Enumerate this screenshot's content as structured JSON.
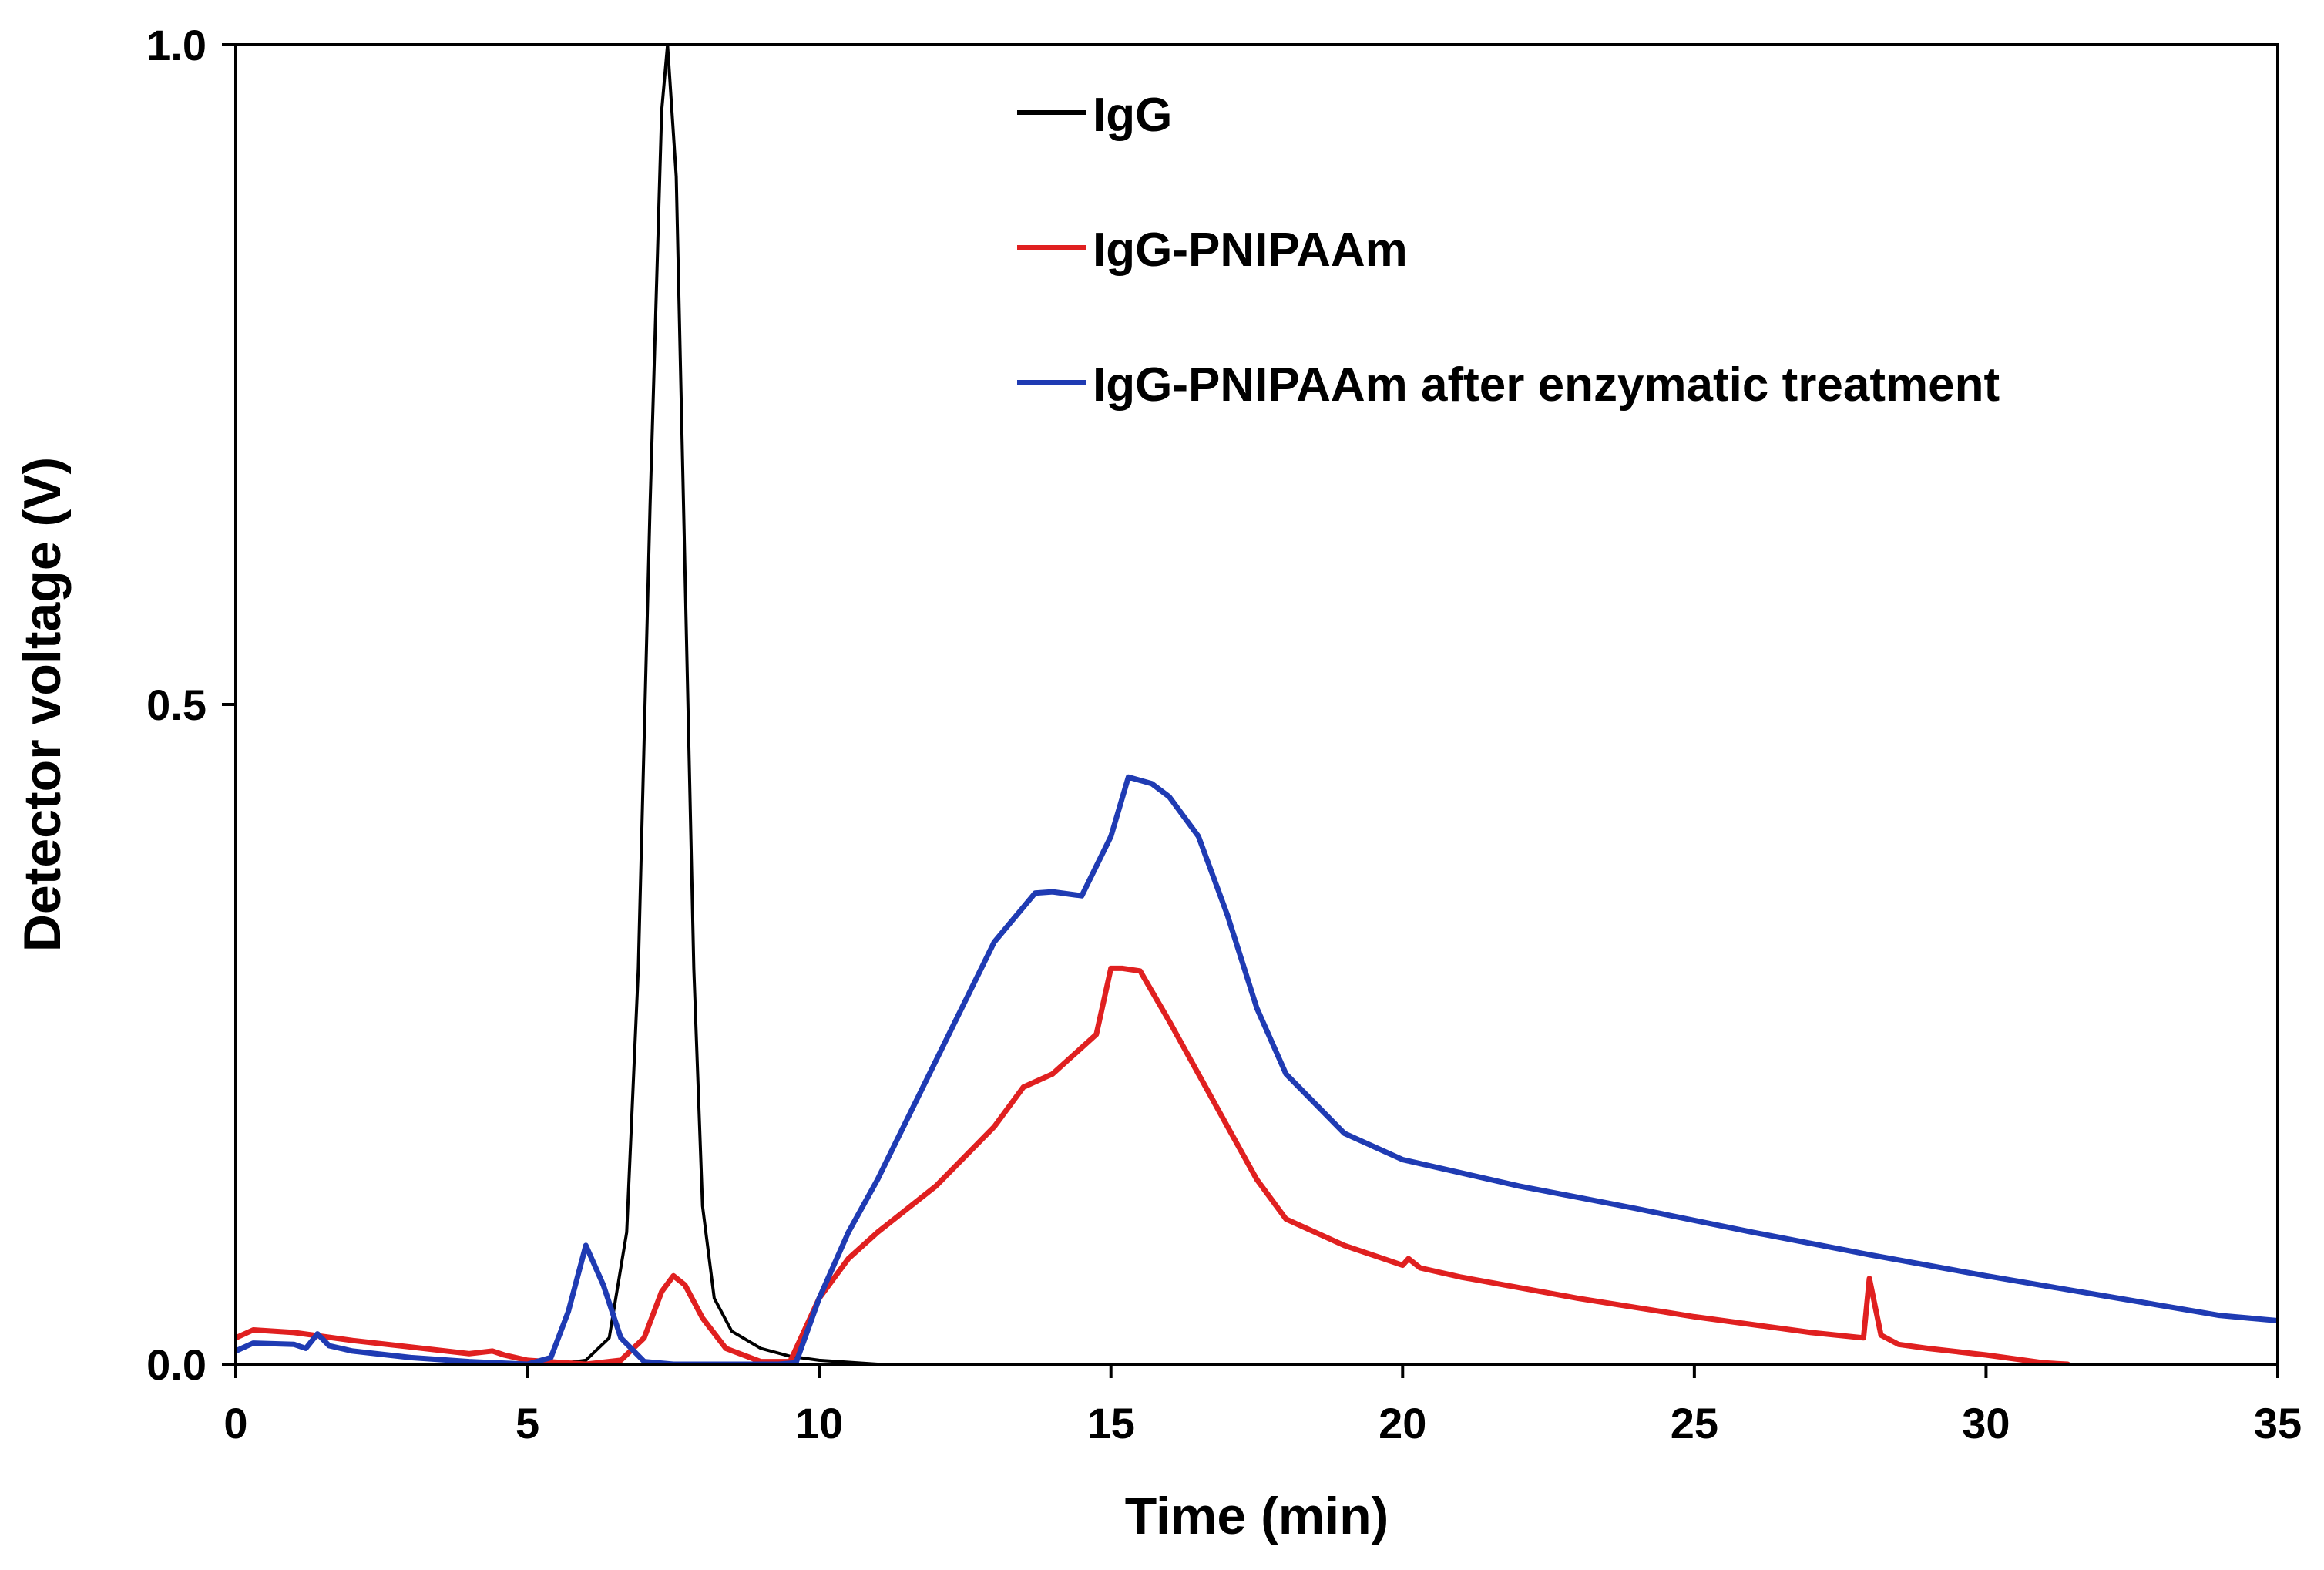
{
  "chart_data": {
    "type": "line",
    "title": "",
    "xlabel": "Time (min)",
    "ylabel": "Detector voltage (V)",
    "xlim": [
      0,
      35
    ],
    "ylim": [
      0,
      1.0
    ],
    "xticks": [
      0,
      5,
      10,
      15,
      20,
      25,
      30,
      35
    ],
    "xtick_labels": [
      "0",
      "5",
      "10",
      "15",
      "20",
      "25",
      "30",
      "35"
    ],
    "yticks": [
      0,
      0.5,
      1.0
    ],
    "ytick_labels": [
      "0.0",
      "0.5",
      "1.0"
    ],
    "grid": false,
    "legend_position": "top-right",
    "series": [
      {
        "name": "IgG",
        "color": "#000000",
        "points": [
          [
            0,
            0.0
          ],
          [
            5.5,
            0.0
          ],
          [
            6.0,
            0.003
          ],
          [
            6.4,
            0.02
          ],
          [
            6.7,
            0.1
          ],
          [
            6.9,
            0.3
          ],
          [
            7.1,
            0.65
          ],
          [
            7.3,
            0.95
          ],
          [
            7.4,
            1.0
          ],
          [
            7.55,
            0.9
          ],
          [
            7.7,
            0.6
          ],
          [
            7.85,
            0.3
          ],
          [
            8.0,
            0.12
          ],
          [
            8.2,
            0.05
          ],
          [
            8.5,
            0.025
          ],
          [
            9.0,
            0.012
          ],
          [
            9.5,
            0.006
          ],
          [
            10.0,
            0.003
          ],
          [
            11.0,
            0.0
          ],
          [
            35,
            0.0
          ]
        ]
      },
      {
        "name": "IgG-PNIPAAm",
        "color": "#e02020",
        "points": [
          [
            0,
            0.02
          ],
          [
            0.3,
            0.026
          ],
          [
            1.0,
            0.024
          ],
          [
            2.0,
            0.018
          ],
          [
            3.0,
            0.013
          ],
          [
            4.0,
            0.008
          ],
          [
            4.4,
            0.01
          ],
          [
            4.6,
            0.007
          ],
          [
            5.0,
            0.003
          ],
          [
            6.0,
            0.0
          ],
          [
            6.6,
            0.003
          ],
          [
            7.0,
            0.02
          ],
          [
            7.3,
            0.055
          ],
          [
            7.5,
            0.067
          ],
          [
            7.7,
            0.06
          ],
          [
            8.0,
            0.035
          ],
          [
            8.4,
            0.012
          ],
          [
            9.0,
            0.002
          ],
          [
            9.5,
            0.002
          ],
          [
            10.0,
            0.05
          ],
          [
            10.5,
            0.08
          ],
          [
            11.0,
            0.1
          ],
          [
            12.0,
            0.135
          ],
          [
            13.0,
            0.18
          ],
          [
            13.5,
            0.21
          ],
          [
            14.0,
            0.22
          ],
          [
            14.5,
            0.24
          ],
          [
            14.75,
            0.25
          ],
          [
            15.0,
            0.3
          ],
          [
            15.2,
            0.3
          ],
          [
            15.5,
            0.298
          ],
          [
            16.0,
            0.26
          ],
          [
            16.5,
            0.22
          ],
          [
            17.0,
            0.18
          ],
          [
            17.5,
            0.14
          ],
          [
            18.0,
            0.11
          ],
          [
            19.0,
            0.09
          ],
          [
            20.0,
            0.075
          ],
          [
            20.1,
            0.08
          ],
          [
            20.3,
            0.073
          ],
          [
            21.0,
            0.066
          ],
          [
            22.0,
            0.058
          ],
          [
            23.0,
            0.05
          ],
          [
            24.0,
            0.043
          ],
          [
            25.0,
            0.036
          ],
          [
            26.0,
            0.03
          ],
          [
            27.0,
            0.024
          ],
          [
            27.9,
            0.02
          ],
          [
            28.0,
            0.065
          ],
          [
            28.2,
            0.022
          ],
          [
            28.5,
            0.015
          ],
          [
            29.0,
            0.012
          ],
          [
            30.0,
            0.007
          ],
          [
            31.0,
            0.001
          ],
          [
            31.4,
            0.0
          ]
        ]
      },
      {
        "name": "IgG-PNIPAAm after enzymatic treatment",
        "color": "#1f3bb3",
        "points": [
          [
            0,
            0.01
          ],
          [
            0.3,
            0.016
          ],
          [
            1.0,
            0.015
          ],
          [
            1.2,
            0.012
          ],
          [
            1.4,
            0.023
          ],
          [
            1.6,
            0.014
          ],
          [
            2.0,
            0.01
          ],
          [
            3.0,
            0.005
          ],
          [
            4.0,
            0.002
          ],
          [
            5.0,
            0.0
          ],
          [
            5.4,
            0.005
          ],
          [
            5.7,
            0.04
          ],
          [
            6.0,
            0.09
          ],
          [
            6.3,
            0.06
          ],
          [
            6.6,
            0.02
          ],
          [
            7.0,
            0.002
          ],
          [
            7.5,
            0.0
          ],
          [
            9.3,
            0.0
          ],
          [
            9.6,
            0.001
          ],
          [
            10.0,
            0.05
          ],
          [
            10.5,
            0.1
          ],
          [
            11.0,
            0.14
          ],
          [
            12.0,
            0.23
          ],
          [
            13.0,
            0.32
          ],
          [
            13.7,
            0.357
          ],
          [
            14.0,
            0.358
          ],
          [
            14.5,
            0.355
          ],
          [
            15.0,
            0.4
          ],
          [
            15.3,
            0.445
          ],
          [
            15.7,
            0.44
          ],
          [
            16.0,
            0.43
          ],
          [
            16.5,
            0.4
          ],
          [
            17.0,
            0.34
          ],
          [
            17.5,
            0.27
          ],
          [
            18.0,
            0.22
          ],
          [
            19.0,
            0.175
          ],
          [
            20.0,
            0.155
          ],
          [
            22.0,
            0.135
          ],
          [
            24.0,
            0.118
          ],
          [
            26.0,
            0.1
          ],
          [
            28.0,
            0.083
          ],
          [
            30.0,
            0.067
          ],
          [
            32.0,
            0.052
          ],
          [
            34.0,
            0.037
          ],
          [
            35.0,
            0.033
          ]
        ]
      }
    ]
  }
}
